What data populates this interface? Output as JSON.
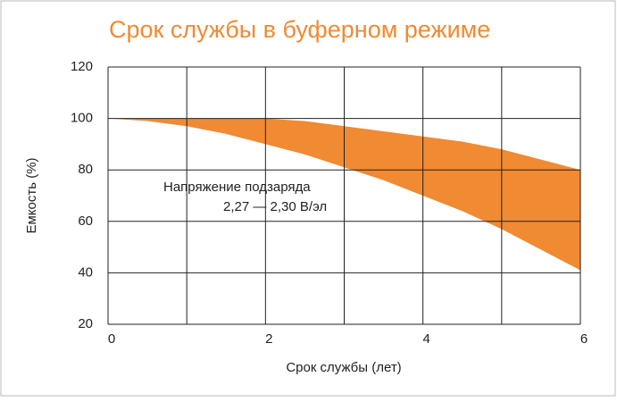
{
  "chart_data": {
    "type": "band",
    "title": "Срок службы в буферном режиме",
    "x_label": "Срок службы (лет)",
    "y_label": "Емкость (%)",
    "annotation": [
      "Напряжение подзаряда",
      "2,27 — 2,30 В/эл"
    ],
    "x": [
      0,
      0.5,
      1,
      1.5,
      2,
      2.5,
      3,
      3.5,
      4,
      4.5,
      5,
      5.5,
      6
    ],
    "upper": [
      100,
      100,
      100,
      100,
      100,
      99,
      97,
      95,
      93,
      91,
      88,
      84,
      80
    ],
    "lower": [
      100,
      99,
      97,
      94,
      90,
      86,
      81,
      76,
      70,
      64,
      57,
      49,
      41
    ],
    "color": "#f08a33",
    "xlim": [
      0,
      6
    ],
    "xticks": [
      0,
      2,
      4,
      6
    ],
    "xgrid": [
      0,
      1,
      2,
      3,
      4,
      5,
      6
    ],
    "ylim": [
      20,
      120
    ],
    "yticks": [
      20,
      40,
      60,
      80,
      100,
      120
    ],
    "grid": true
  }
}
